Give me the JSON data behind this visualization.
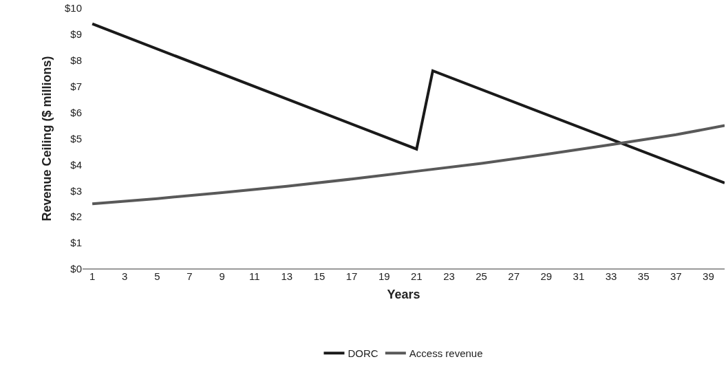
{
  "chart_data": {
    "type": "line",
    "xlabel": "Years",
    "ylabel": "Revenue Ceiling ($ millions)",
    "xlim": [
      0.4,
      40
    ],
    "xticks": [
      1,
      3,
      5,
      7,
      9,
      11,
      13,
      15,
      17,
      19,
      21,
      23,
      25,
      27,
      29,
      31,
      33,
      35,
      37,
      39
    ],
    "ylim": [
      0,
      10
    ],
    "yticks": [
      {
        "value": 0,
        "label": "$0"
      },
      {
        "value": 1,
        "label": "$1"
      },
      {
        "value": 2,
        "label": "$2"
      },
      {
        "value": 3,
        "label": "$3"
      },
      {
        "value": 4,
        "label": "$4"
      },
      {
        "value": 5,
        "label": "$5"
      },
      {
        "value": 6,
        "label": "$6"
      },
      {
        "value": 7,
        "label": "$7"
      },
      {
        "value": 8,
        "label": "$8"
      },
      {
        "value": 9,
        "label": "$9"
      },
      {
        "value": 10,
        "label": "$10"
      }
    ],
    "grid": false,
    "legend": "bottom",
    "marker": "none",
    "line_style": "solid",
    "series": [
      {
        "name": "DORC",
        "color": "#1a1a1a",
        "x": [
          1,
          21,
          22,
          40
        ],
        "values": [
          9.4,
          4.6,
          7.6,
          3.3
        ]
      },
      {
        "name": "Access revenue",
        "color": "#595959",
        "x": [
          1,
          5,
          9,
          13,
          17,
          21,
          25,
          29,
          33,
          37,
          40
        ],
        "values": [
          2.5,
          2.7,
          2.93,
          3.17,
          3.45,
          3.75,
          4.05,
          4.4,
          4.77,
          5.15,
          5.5
        ]
      }
    ]
  }
}
